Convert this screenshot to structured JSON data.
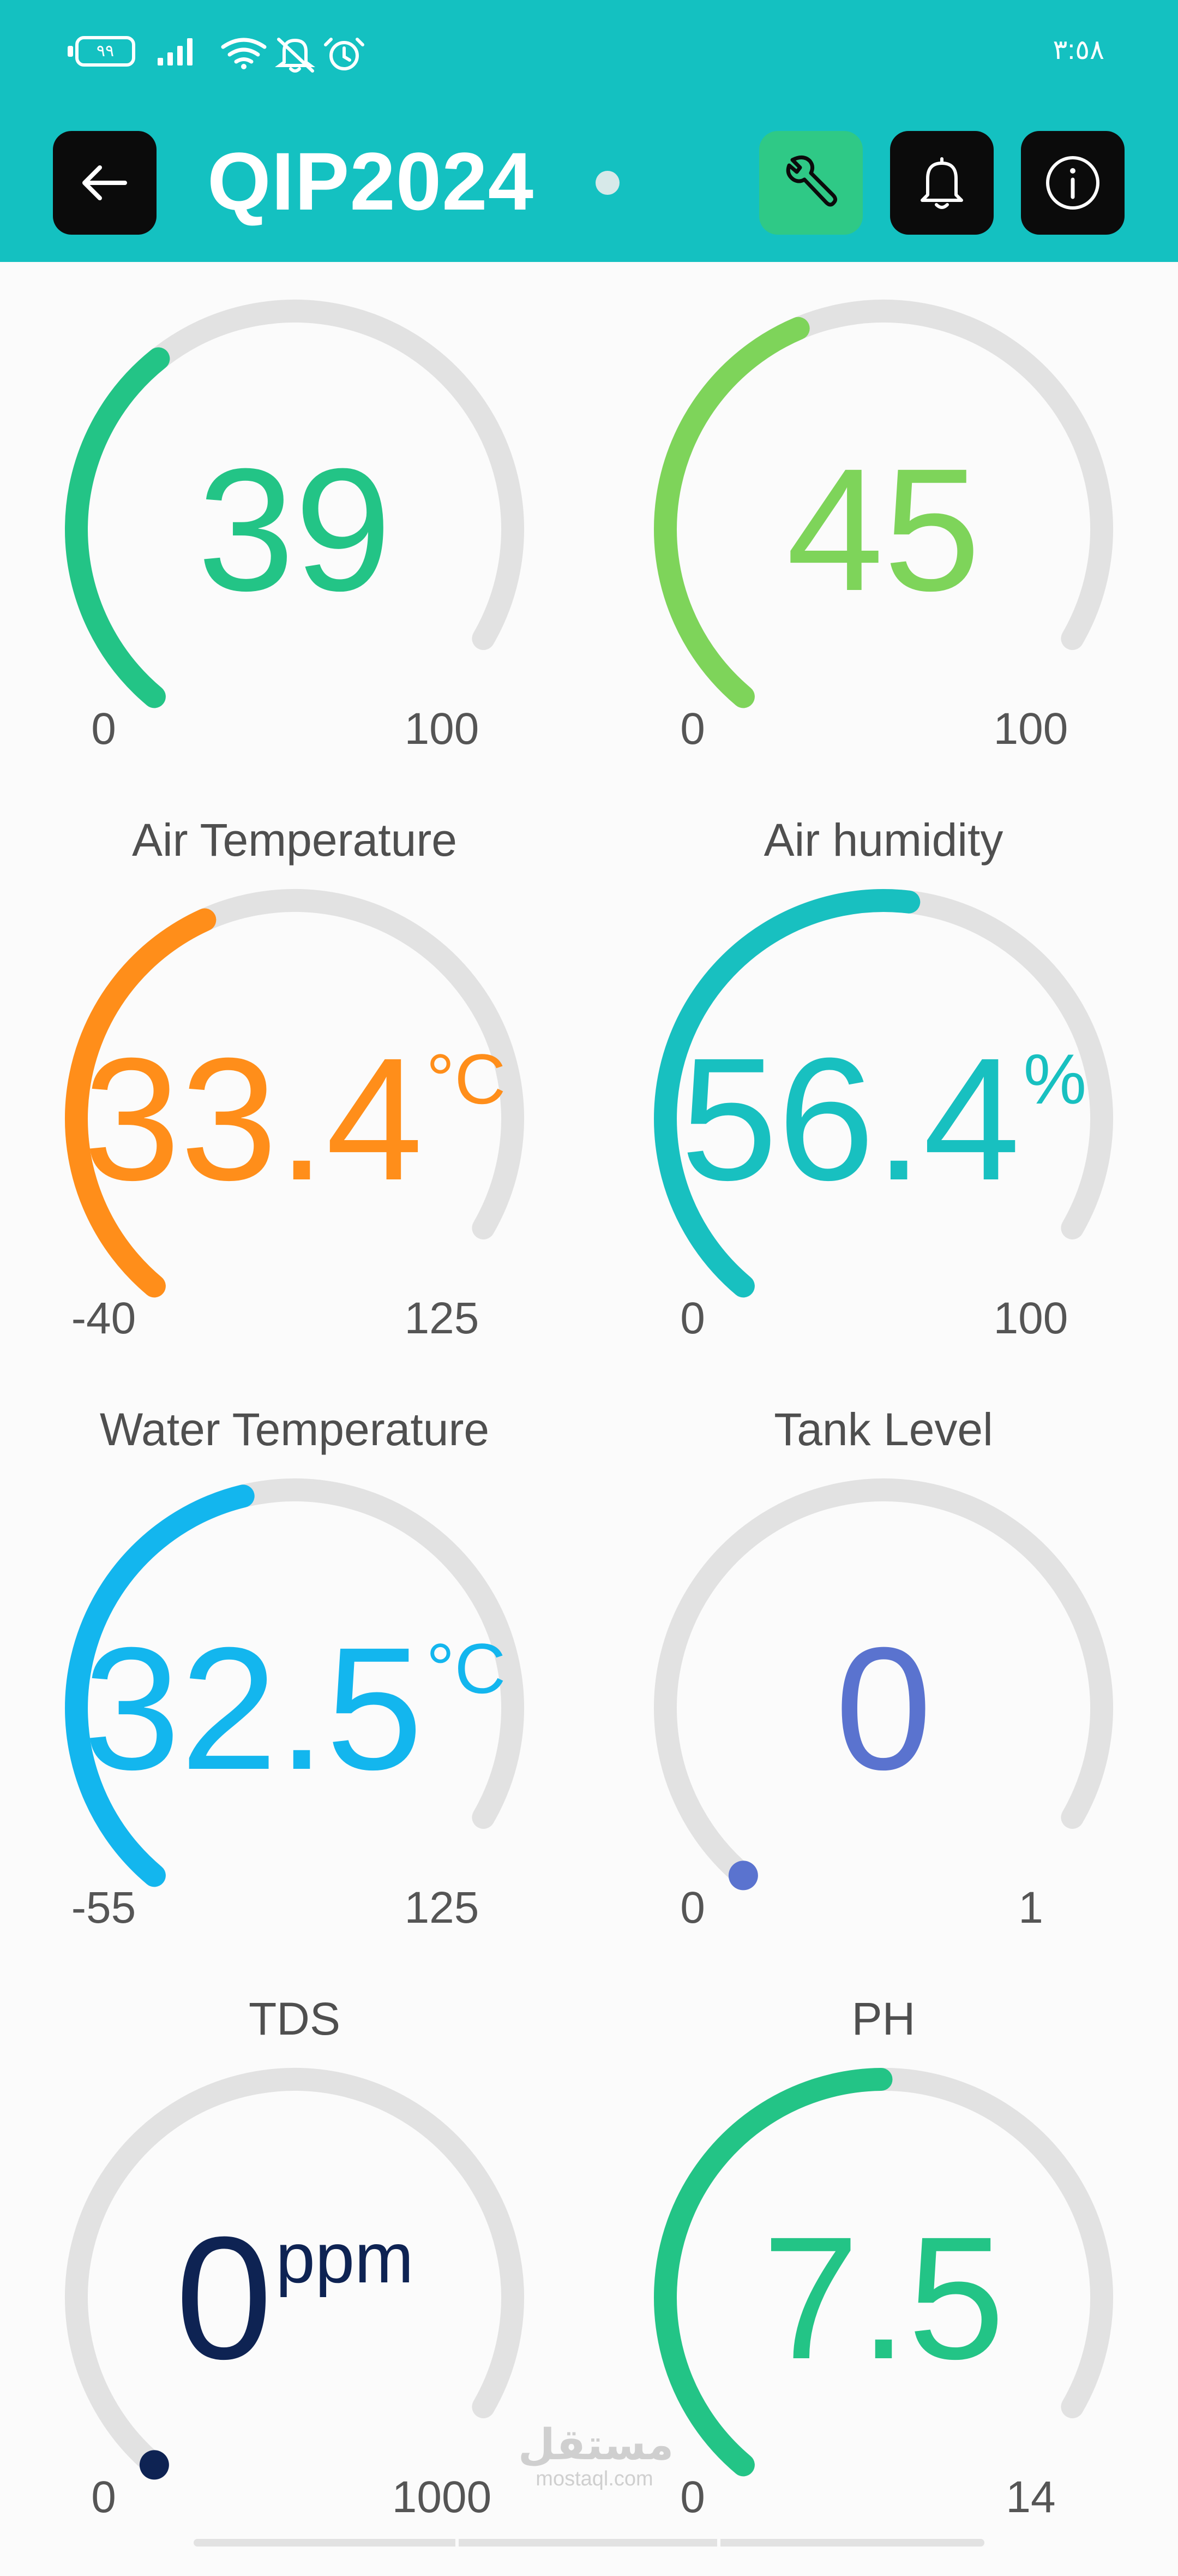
{
  "status_bar": {
    "battery": "٩٩",
    "time": "٣:٥٨",
    "icons": [
      "signal-icon",
      "wifi-icon",
      "bell-muted-icon",
      "alarm-icon"
    ]
  },
  "header": {
    "title": "QIP2024",
    "buttons": [
      "back-arrow-icon",
      "wrench-icon",
      "bell-icon",
      "info-icon"
    ],
    "colors": {
      "bar": "#14c1c1",
      "wrench_button": "#2fc986",
      "dark_button": "#0b0b0b"
    }
  },
  "gauges": [
    {
      "label": "",
      "value": "39",
      "unit": "",
      "min": "0",
      "max": "100",
      "level": 0.39,
      "color": "#23c486"
    },
    {
      "label": "",
      "value": "45",
      "unit": "",
      "min": "0",
      "max": "100",
      "level": 0.45,
      "color": "#7ed45a"
    },
    {
      "label": "Air Temperature",
      "value": "33.4",
      "unit": "°C",
      "min": "-40",
      "max": "125",
      "level": 0.445,
      "color": "#ff8e1a"
    },
    {
      "label": "Air humidity",
      "value": "56.4",
      "unit": "%",
      "min": "0",
      "max": "100",
      "level": 0.564,
      "color": "#18c0c0"
    },
    {
      "label": "Water Temperature",
      "value": "32.5",
      "unit": "°C",
      "min": "-55",
      "max": "125",
      "level": 0.486,
      "color": "#13b6ee"
    },
    {
      "label": "Tank Level",
      "value": "0",
      "unit": "",
      "min": "0",
      "max": "1",
      "level": 0,
      "color": "#5a73cf"
    },
    {
      "label": "TDS",
      "value": "0",
      "unit": "ppm",
      "min": "0",
      "max": "1000",
      "level": 0,
      "color": "#0e2353"
    },
    {
      "label": "PH",
      "value": "7.5",
      "unit": "",
      "min": "0",
      "max": "14",
      "level": 0.536,
      "color": "#23c486"
    }
  ],
  "watermark": {
    "arabic": "مستقل",
    "latin": "mostaql.com"
  }
}
